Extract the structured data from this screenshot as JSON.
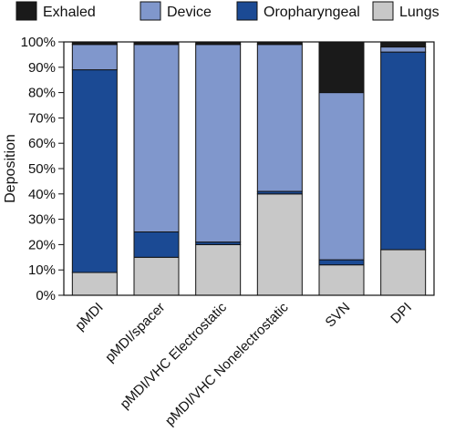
{
  "chart_data": {
    "type": "bar",
    "stacked": true,
    "title": "",
    "xlabel": "",
    "ylabel": "Deposition",
    "ylim": [
      0,
      100
    ],
    "yticks": [
      "0%",
      "10%",
      "20%",
      "30%",
      "40%",
      "50%",
      "60%",
      "70%",
      "80%",
      "90%",
      "100%"
    ],
    "categories": [
      "pMDI",
      "pMDI/spacer",
      "pMDI/VHC Electrostatic",
      "pMDI/VHC Nonelectrostatic",
      "SVN",
      "DPI"
    ],
    "series": [
      {
        "name": "Lungs",
        "color": "#c8c8c8",
        "values": [
          9,
          15,
          20,
          40,
          12,
          18
        ]
      },
      {
        "name": "Oropharyngeal",
        "color": "#1b4a94",
        "values": [
          80,
          10,
          1,
          1,
          2,
          78
        ]
      },
      {
        "name": "Device",
        "color": "#8097cc",
        "values": [
          10,
          74,
          78,
          58,
          66,
          2
        ]
      },
      {
        "name": "Exhaled",
        "color": "#1a1a1a",
        "values": [
          1,
          1,
          1,
          1,
          20,
          2
        ]
      }
    ],
    "legend": {
      "position": "top",
      "order": [
        "Exhaled",
        "Device",
        "Oropharyngeal",
        "Lungs"
      ]
    },
    "grid": false
  }
}
